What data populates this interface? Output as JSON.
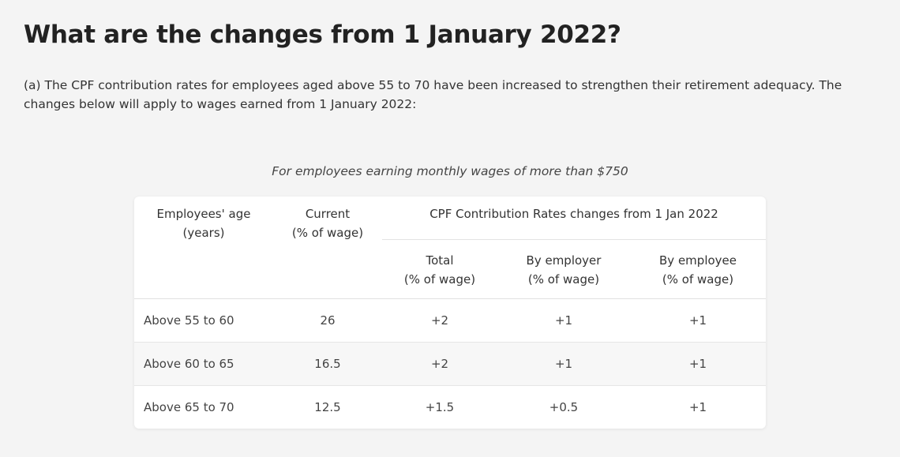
{
  "title": "What are the changes from 1 January 2022?",
  "intro": "(a) The CPF contribution rates for employees aged above 55 to 70 have been increased to strengthen their retirement adequacy. The changes below will apply to wages earned from 1 January 2022:",
  "caption": "For employees earning monthly wages of more than $750",
  "table": {
    "header": {
      "age": [
        "Employees' age",
        "(years)"
      ],
      "current": [
        "Current",
        "(% of wage)"
      ],
      "group": "CPF Contribution Rates changes from 1 Jan 2022",
      "total": [
        "Total",
        "(% of wage)"
      ],
      "employer": [
        "By employer",
        "(% of wage)"
      ],
      "employee": [
        "By employee",
        "(% of wage)"
      ]
    },
    "rows": [
      [
        "Above 55 to 60",
        "26",
        "+2",
        "+1",
        "+1"
      ],
      [
        "Above 60 to 65",
        "16.5",
        "+2",
        "+1",
        "+1"
      ],
      [
        "Above 65 to 70",
        "12.5",
        "+1.5",
        "+0.5",
        "+1"
      ]
    ]
  }
}
